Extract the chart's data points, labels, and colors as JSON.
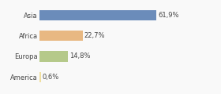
{
  "categories": [
    "Asia",
    "Africa",
    "Europa",
    "America"
  ],
  "values": [
    61.9,
    22.7,
    14.8,
    0.6
  ],
  "labels": [
    "61,9%",
    "22,7%",
    "14,8%",
    "0,6%"
  ],
  "bar_colors": [
    "#6b8cba",
    "#e8b882",
    "#b5c98a",
    "#f0dfa0"
  ],
  "background_color": "#f9f9f9",
  "xlim": [
    0,
    82
  ],
  "label_fontsize": 6.0,
  "tick_fontsize": 6.0,
  "bar_height": 0.5
}
